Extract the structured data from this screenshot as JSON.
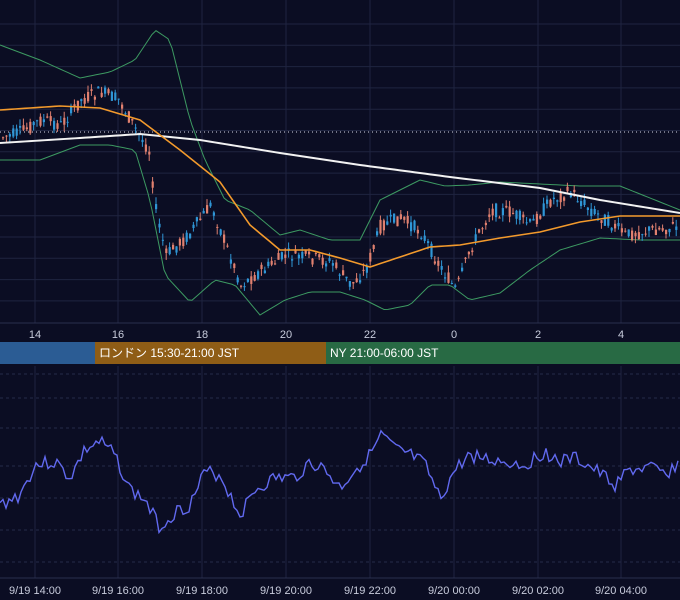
{
  "chart_data": [
    {
      "type": "candlestick",
      "title": "",
      "x_ticks": [
        "14",
        "16",
        "18",
        "20",
        "22",
        "0",
        "2",
        "4"
      ],
      "dotted_reference_line": true,
      "colors": {
        "up": "#2f96d6",
        "down": "#e0806f",
        "bollinger": "#3d9a62",
        "ma_short": "#f39a2c",
        "ma_long": "#f2f2f2",
        "background": "#0b0d23",
        "grid": "#1f2440"
      },
      "indicators": [
        "Bollinger Bands",
        "Moving Average (short)",
        "Moving Average (long)"
      ]
    },
    {
      "type": "line",
      "title": "",
      "series_color": "#6169ef",
      "x_ticks": [
        "9/19 14:00",
        "9/19 16:00",
        "9/19 18:00",
        "9/19 20:00",
        "9/19 22:00",
        "9/20 00:00",
        "9/20 02:00",
        "9/20 04:00"
      ]
    }
  ],
  "sessions": [
    {
      "label": "",
      "color": "#2b5c94"
    },
    {
      "label": "ロンドン 15:30-21:00 JST",
      "color": "#8f5d16"
    },
    {
      "label": "NY 21:00-06:00 JST",
      "color": "#286a44"
    }
  ]
}
